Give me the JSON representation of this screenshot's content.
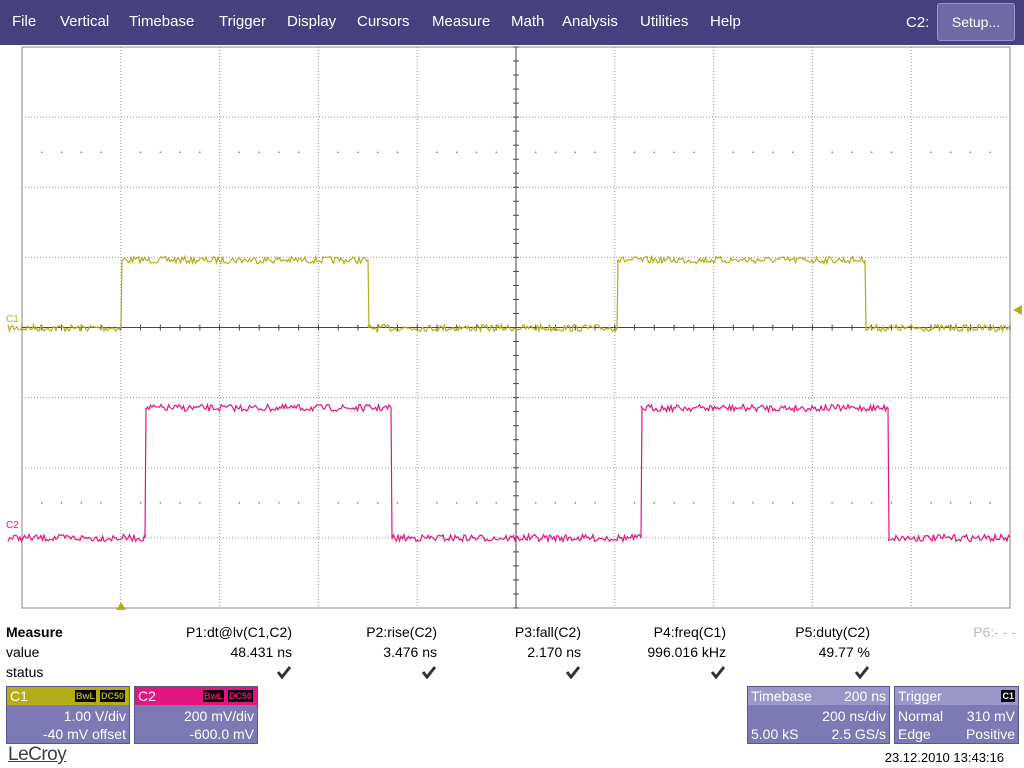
{
  "menu": {
    "items": [
      "File",
      "Vertical",
      "Timebase",
      "Trigger",
      "Display",
      "Cursors",
      "Measure",
      "Math",
      "Analysis",
      "Utilities",
      "Help"
    ],
    "channel_label": "C2:",
    "setup_button": "Setup..."
  },
  "screen": {
    "traces": [
      {
        "label": "C1"
      },
      {
        "label": "C2"
      }
    ]
  },
  "measure": {
    "title": "Measure",
    "row_labels": [
      "value",
      "status"
    ],
    "params": [
      {
        "name": "P1:dt@lv(C1,C2)",
        "value": "48.431 ns"
      },
      {
        "name": "P2:rise(C2)",
        "value": "3.476 ns"
      },
      {
        "name": "P3:fall(C2)",
        "value": "2.170 ns"
      },
      {
        "name": "P4:freq(C1)",
        "value": "996.016 kHz"
      },
      {
        "name": "P5:duty(C2)",
        "value": "49.77 %"
      },
      {
        "name": "P6:- - -"
      }
    ]
  },
  "channels": [
    {
      "name": "C1",
      "badges": [
        "BwL",
        "DC50"
      ],
      "scale": "1.00 V/div",
      "offset": "-40 mV offset"
    },
    {
      "name": "C2",
      "badges": [
        "BwL",
        "DC50"
      ],
      "scale": "200 mV/div",
      "offset": "-600.0 mV"
    }
  ],
  "timebase": {
    "title": "Timebase",
    "delay": "200 ns",
    "scale": "200 ns/div",
    "samples": "5.00 kS",
    "rate": "2.5 GS/s"
  },
  "trigger": {
    "title": "Trigger",
    "source": "C1",
    "mode": "Normal",
    "level": "310 mV",
    "type": "Edge",
    "slope": "Positive"
  },
  "footer": {
    "brand": "LeCroy",
    "timestamp": "23.12.2010 13:43:16"
  }
}
